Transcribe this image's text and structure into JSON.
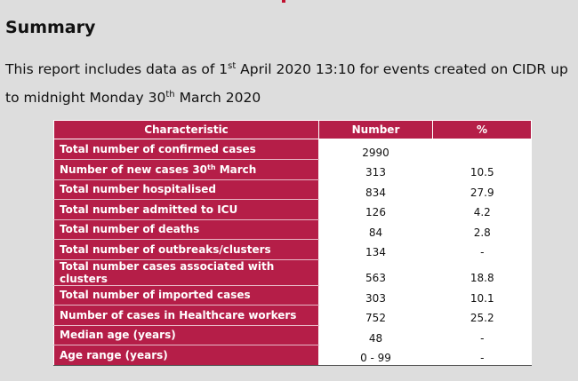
{
  "section": {
    "title": "Summary",
    "intro": {
      "part1": "This report includes data as of 1",
      "sup1": "st",
      "part2": " April 2020 13:10 for events created on CIDR up to midnight Monday 30",
      "sup2": "th",
      "part3": " March 2020"
    }
  },
  "table": {
    "headers": [
      "Characteristic",
      "Number",
      "%"
    ],
    "rows": [
      {
        "characteristic": "Total number of confirmed cases",
        "number": "2990",
        "percent": ""
      },
      {
        "characteristic_pre": "Number of new cases 30",
        "characteristic_sup": "th",
        "characteristic_post": " March",
        "number": "313",
        "percent": "10.5"
      },
      {
        "characteristic": "Total number hospitalised",
        "number": "834",
        "percent": "27.9"
      },
      {
        "characteristic": "Total number admitted to ICU",
        "number": "126",
        "percent": "4.2"
      },
      {
        "characteristic": "Total number of deaths",
        "number": "84",
        "percent": "2.8"
      },
      {
        "characteristic": "Total number of outbreaks/clusters",
        "number": "134",
        "percent": "-"
      },
      {
        "characteristic": "Total number cases associated with clusters",
        "number": "563",
        "percent": "18.8"
      },
      {
        "characteristic": "Total number of imported cases",
        "number": "303",
        "percent": "10.1"
      },
      {
        "characteristic": "Number of cases in Healthcare workers",
        "number": "752",
        "percent": "25.2"
      },
      {
        "characteristic": "Median age (years)",
        "number": "48",
        "percent": "-"
      },
      {
        "characteristic": "Age range (years)",
        "number": "0 - 99",
        "percent": "-"
      }
    ]
  },
  "colors": {
    "header_bg": "#b51e48",
    "page_bg": "#dddddd"
  }
}
